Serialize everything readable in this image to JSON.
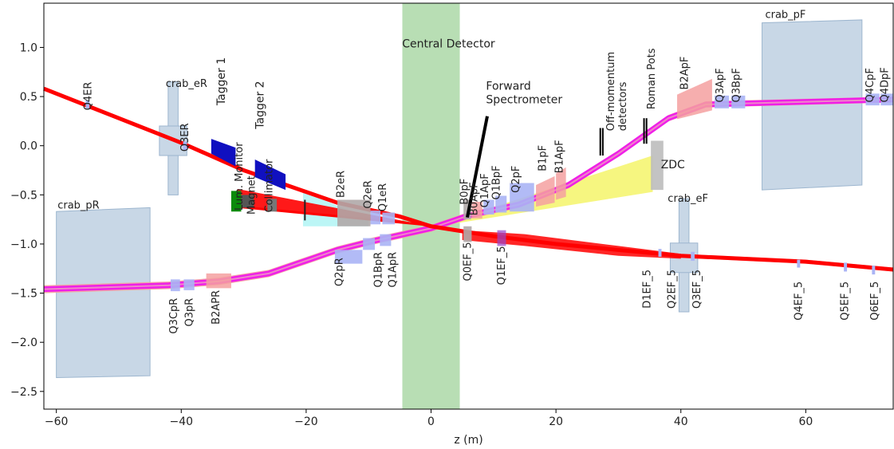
{
  "chart_data": {
    "type": "diagram-plot",
    "xlabel": "z (m)",
    "ylabel": "",
    "xlim": [
      -62,
      74
    ],
    "ylim": [
      -2.68,
      1.45
    ],
    "xticks": [
      -60,
      -40,
      -20,
      0,
      20,
      40,
      60
    ],
    "yticks": [
      -2.5,
      -2.0,
      -1.5,
      -1.0,
      -0.5,
      0.0,
      0.5,
      1.0
    ],
    "grid": false,
    "colors": {
      "crab": "#c8d7e6",
      "magenta": "#ee11ee",
      "red": "#ff0000",
      "salmon": "#f4a0a0",
      "central": "#b4dcb0",
      "dipole_blue": "#1010c0",
      "quad_blue": "#aab4f5",
      "cyan": "#b0f4f4",
      "yellow": "#f5f56a",
      "grey": "#b0a8a8"
    },
    "labels": {
      "central_detector": "Central Detector",
      "forward_spectrometer_1": "Forward",
      "forward_spectrometer_2": "Spectrometer",
      "off_momentum_1": "Off-momentum",
      "off_momentum_2": "detectors",
      "roman_pots": "Roman Pots",
      "zdc": "ZDC",
      "crab_pF": "crab_pF",
      "crab_eR": "crab_eR",
      "crab_pR": "crab_pR",
      "crab_eF": "crab_eF",
      "tagger_1": "Tagger 1",
      "tagger_2": "Tagger 2",
      "lumi_monitor": "Lum. Monitor",
      "magnet": "Magnet",
      "collimator": "Collimator"
    },
    "upper_labels": [
      {
        "text": "Q4ER",
        "z": -55,
        "y": 0.36
      },
      {
        "text": "Q3ER",
        "z": -39.5,
        "y": -0.06
      },
      {
        "text": "B2eR",
        "z": -14.5,
        "y": -0.53
      },
      {
        "text": "Q2eR",
        "z": -10.2,
        "y": -0.64
      },
      {
        "text": "Q1eR",
        "z": -7.8,
        "y": -0.67
      },
      {
        "text": "B0pF",
        "z": 5.3,
        "y": -0.6
      },
      {
        "text": "B0ApF",
        "z": 6.8,
        "y": -0.71
      },
      {
        "text": "Q1ApF",
        "z": 8.5,
        "y": -0.63
      },
      {
        "text": "Q1BpF",
        "z": 10.4,
        "y": -0.55
      },
      {
        "text": "Q2pF",
        "z": 13.5,
        "y": -0.48
      },
      {
        "text": "B1pF",
        "z": 17.8,
        "y": -0.26
      },
      {
        "text": "B1ApF",
        "z": 20.5,
        "y": -0.28
      },
      {
        "text": "B2ApF",
        "z": 40.5,
        "y": 0.57
      },
      {
        "text": "Q3ApF",
        "z": 46.2,
        "y": 0.44
      },
      {
        "text": "Q3BpF",
        "z": 48.8,
        "y": 0.44
      },
      {
        "text": "Q4CpF",
        "z": 70.2,
        "y": 0.44
      },
      {
        "text": "Q4DpF",
        "z": 72.6,
        "y": 0.44
      }
    ],
    "lower_labels": [
      {
        "text": "Q2pR",
        "z": -14.8,
        "y": -1.14
      },
      {
        "text": "Q1BpR",
        "z": -8.5,
        "y": -1.08
      },
      {
        "text": "Q1ApR",
        "z": -6.2,
        "y": -1.08
      },
      {
        "text": "Q0EF_5",
        "z": 5.8,
        "y": -0.98
      },
      {
        "text": "Q1EF_5",
        "z": 11.2,
        "y": -1.02
      },
      {
        "text": "D1EF_5",
        "z": 34.5,
        "y": -1.26
      },
      {
        "text": "Q2EF_5",
        "z": 38.5,
        "y": -1.26
      },
      {
        "text": "Q3EF_5",
        "z": 42.5,
        "y": -1.26
      },
      {
        "text": "Q4EF_5",
        "z": 58.8,
        "y": -1.38
      },
      {
        "text": "Q5EF_5",
        "z": 66.2,
        "y": -1.38
      },
      {
        "text": "Q6EF_5",
        "z": 71,
        "y": -1.38
      },
      {
        "text": "Q3CpR",
        "z": -41.3,
        "y": -1.55
      },
      {
        "text": "Q3pR",
        "z": -38.8,
        "y": -1.55
      },
      {
        "text": "B2APR",
        "z": -34.5,
        "y": -1.47
      }
    ],
    "beam_proton": [
      [
        -62,
        -1.46
      ],
      [
        -42,
        -1.42
      ],
      [
        -34,
        -1.38
      ],
      [
        -26,
        -1.3
      ],
      [
        -15,
        -1.06
      ],
      [
        -10,
        -0.98
      ],
      [
        0,
        -0.84
      ],
      [
        6,
        -0.71
      ],
      [
        14,
        -0.6
      ],
      [
        22,
        -0.4
      ],
      [
        30,
        -0.08
      ],
      [
        38,
        0.28
      ],
      [
        44,
        0.42
      ],
      [
        74,
        0.47
      ]
    ],
    "beam_electron": [
      [
        -62,
        0.58
      ],
      [
        -40,
        0.03
      ],
      [
        -30,
        -0.25
      ],
      [
        -15,
        -0.58
      ],
      [
        -5,
        -0.72
      ],
      [
        0,
        -0.82
      ],
      [
        10,
        -0.92
      ],
      [
        20,
        -1
      ],
      [
        30,
        -1.06
      ],
      [
        40,
        -1.12
      ],
      [
        60,
        -1.18
      ],
      [
        74,
        -1.26
      ]
    ],
    "crab_cavities": [
      {
        "label": "crab_pF",
        "z": [
          53,
          69
        ],
        "y_left": [
          -0.45,
          1.25
        ],
        "y_right": [
          -0.4,
          1.28
        ]
      },
      {
        "label": "crab_pR",
        "z": [
          -60,
          -45
        ],
        "y_left": [
          -2.36,
          -0.67
        ],
        "y_right": [
          -2.34,
          -0.63
        ]
      }
    ]
  }
}
